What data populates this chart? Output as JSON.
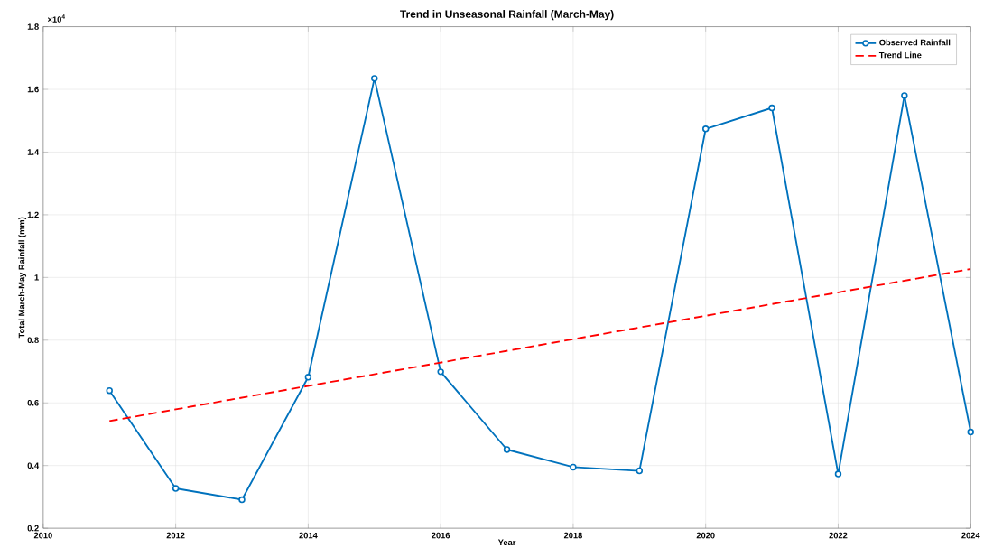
{
  "chart_data": {
    "type": "line",
    "title": "Trend in Unseasonal Rainfall (March-May)",
    "xlabel": "Year",
    "ylabel": "Total March-May Rainfall (mm)",
    "annotations": [
      "×10$^{4}$"
    ],
    "x": [
      2011,
      2012,
      2013,
      2014,
      2015,
      2016,
      2017,
      2018,
      2019,
      2020,
      2021,
      2022,
      2023,
      2024
    ],
    "series": [
      {
        "name": "Observed Rainfall",
        "color": "#0072bd",
        "marker": "circle",
        "line_style": "solid",
        "values": [
          0.639,
          0.327,
          0.291,
          0.682,
          1.635,
          0.699,
          0.451,
          0.395,
          0.383,
          1.474,
          1.541,
          0.373,
          1.58,
          0.507
        ]
      },
      {
        "name": "Trend Line",
        "color": "#ff0000",
        "marker": "none",
        "line_style": "dashed",
        "x": [
          2011,
          2024
        ],
        "values": [
          0.542,
          1.027
        ]
      }
    ],
    "xlim": [
      2010,
      2024
    ],
    "xticks": [
      2010,
      2012,
      2014,
      2016,
      2018,
      2020,
      2022,
      2024
    ],
    "ylim": [
      0.2,
      1.8
    ],
    "yticks": [
      0.2,
      0.4,
      0.6,
      0.8,
      1,
      1.2,
      1.4,
      1.6,
      1.8
    ],
    "grid": true,
    "legend": "top right"
  }
}
